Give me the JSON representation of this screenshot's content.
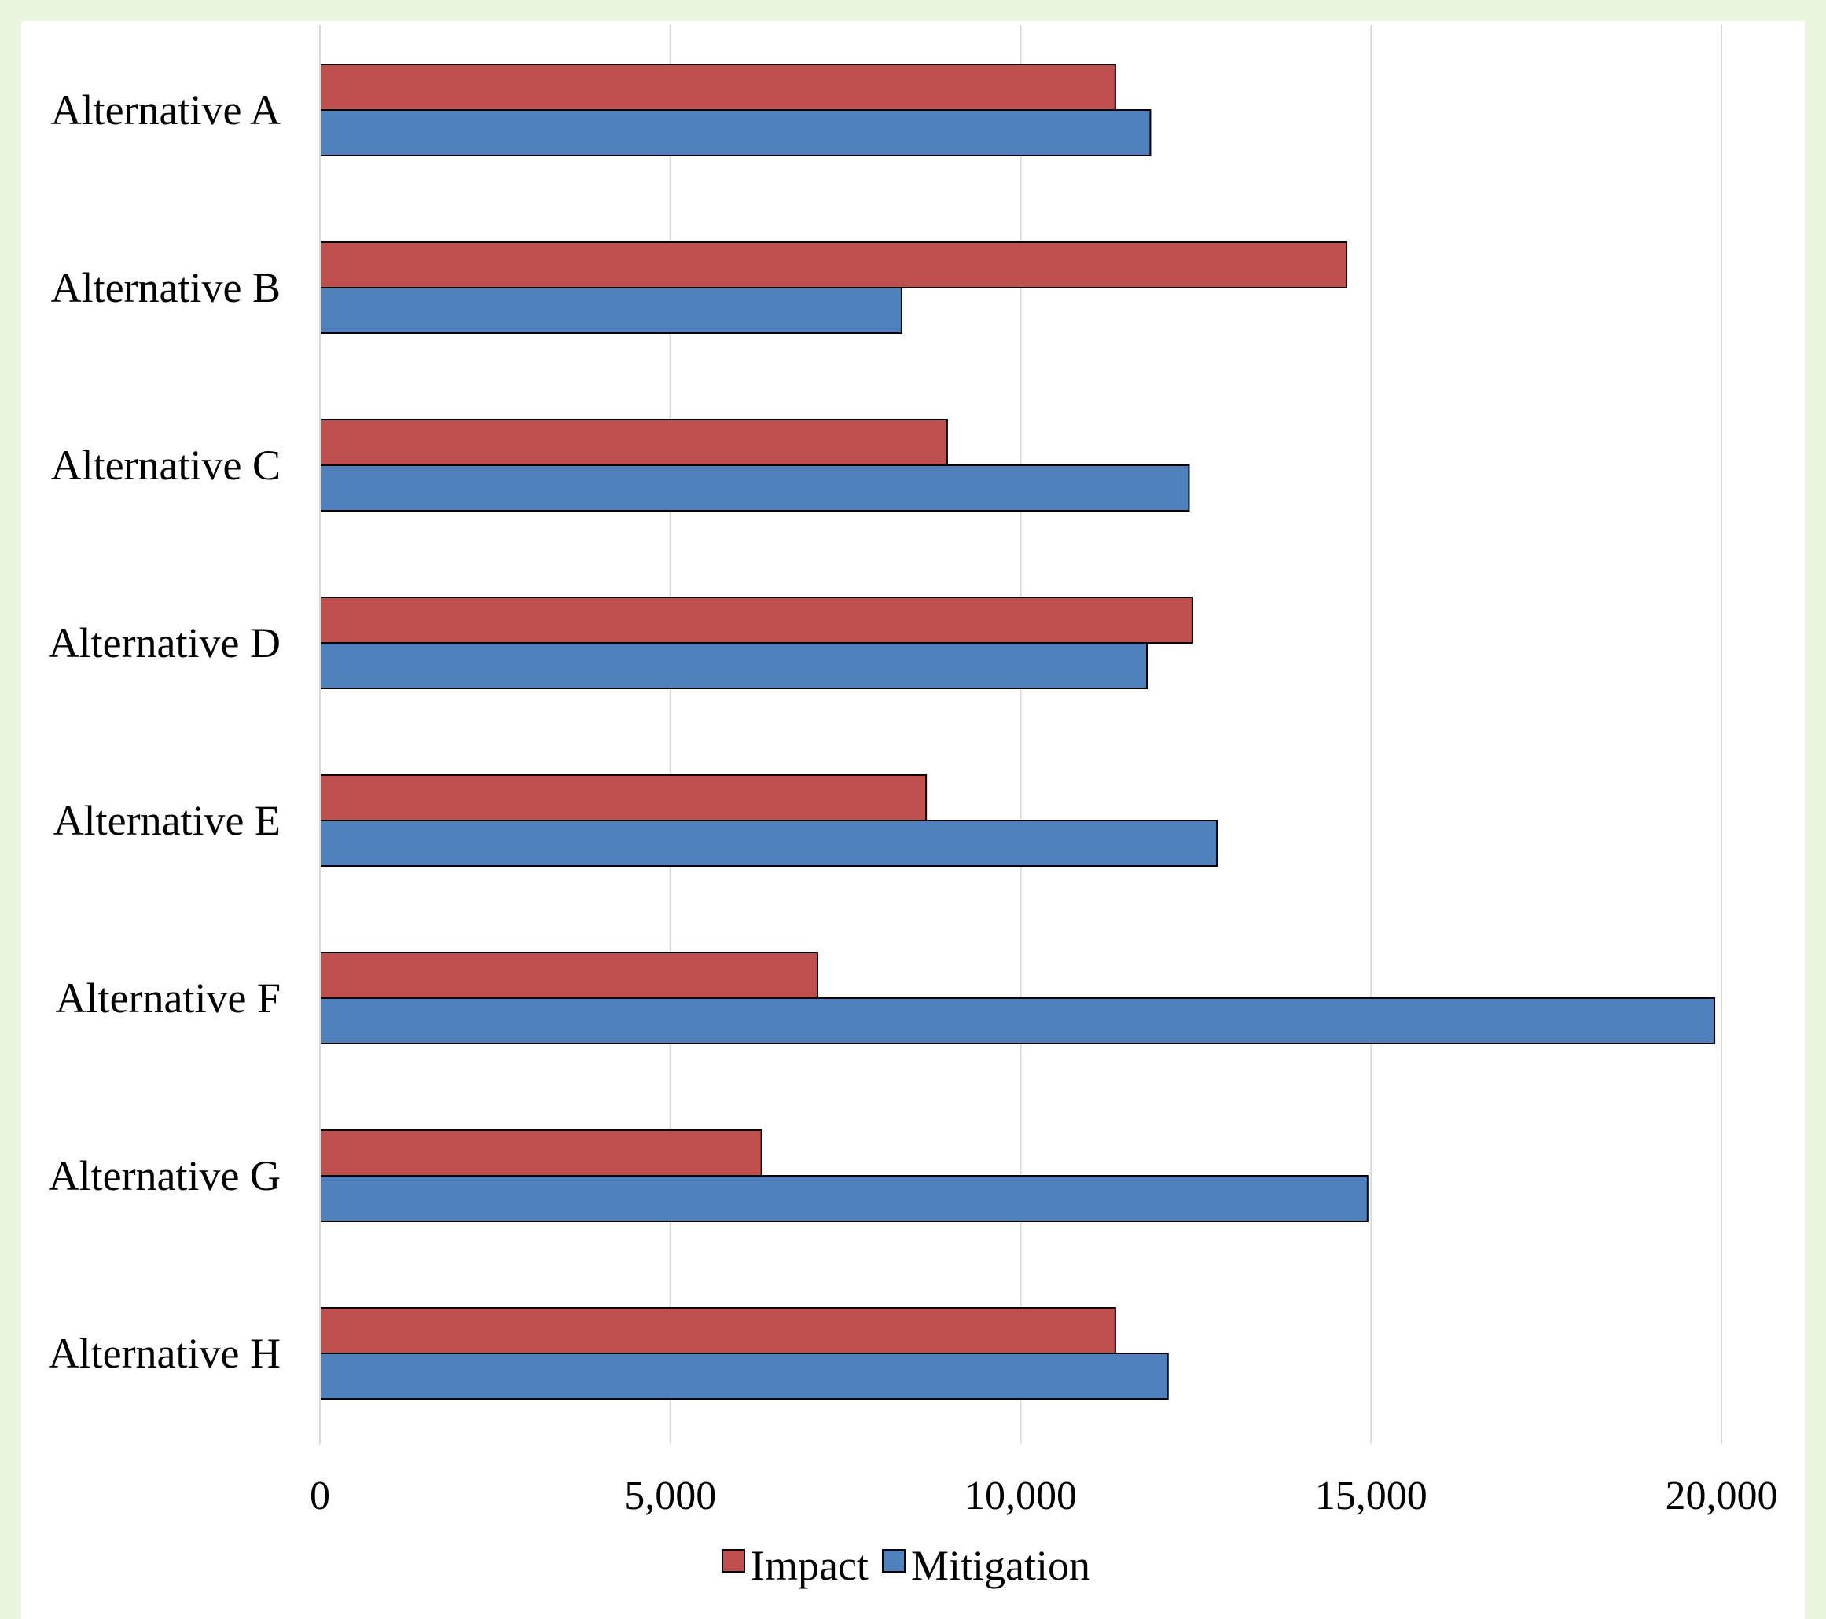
{
  "chart_data": {
    "type": "bar",
    "orientation": "horizontal",
    "categories": [
      "Alternative A",
      "Alternative B",
      "Alternative C",
      "Alternative D",
      "Alternative E",
      "Alternative F",
      "Alternative G",
      "Alternative H"
    ],
    "series": [
      {
        "name": "Impact",
        "color": "#c0504d",
        "values": [
          11350,
          14650,
          8950,
          12450,
          8650,
          7100,
          6300,
          11350
        ]
      },
      {
        "name": "Mitigation",
        "color": "#4f81bd",
        "values": [
          11850,
          8300,
          12400,
          11800,
          12800,
          19900,
          14950,
          12100
        ]
      }
    ],
    "xlim": [
      0,
      20000
    ],
    "xticks": [
      0,
      5000,
      10000,
      15000,
      20000
    ],
    "xtick_labels": [
      "0",
      "5,000",
      "10,000",
      "15,000",
      "20,000"
    ],
    "grid": "vertical",
    "legend_position": "bottom",
    "title": "",
    "xlabel": "",
    "ylabel": ""
  }
}
